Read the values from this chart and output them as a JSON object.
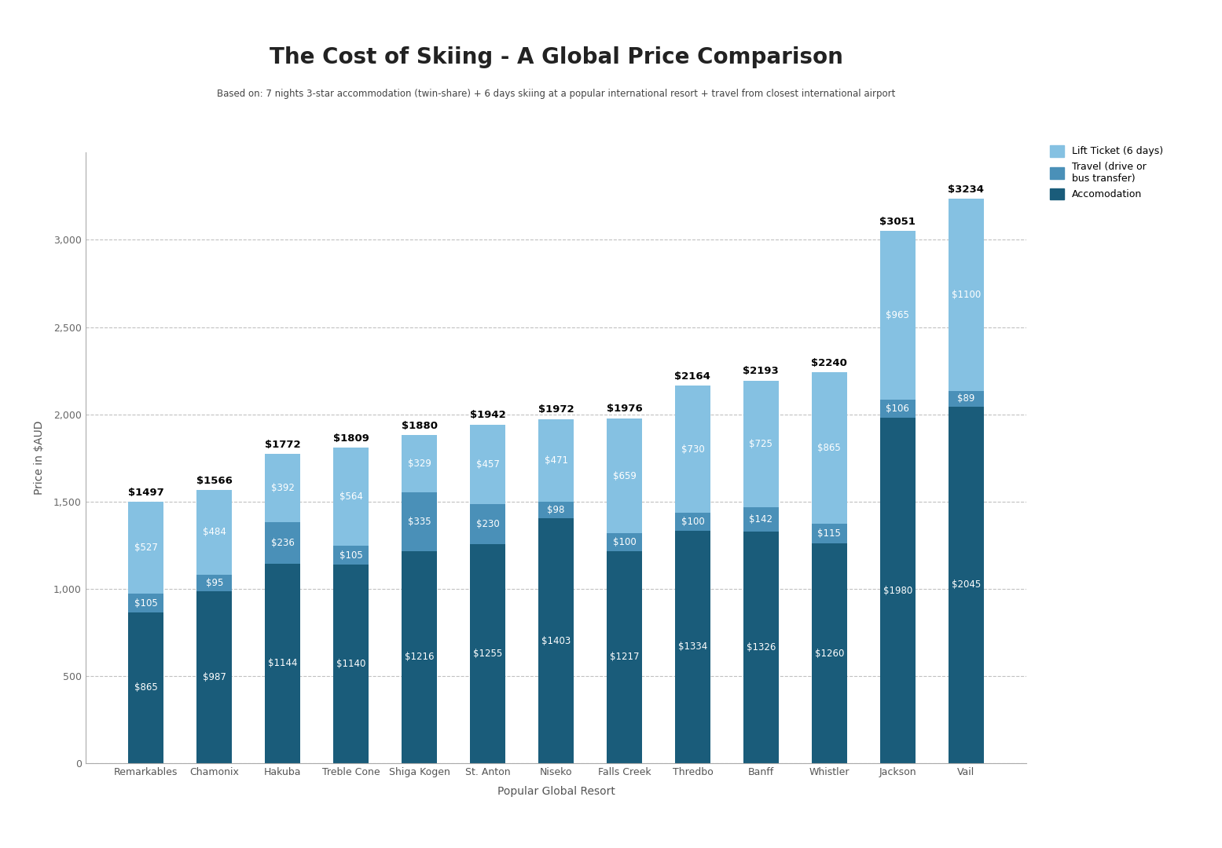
{
  "title": "The Cost of Skiing - A Global Price Comparison",
  "subtitle": "Based on: 7 nights 3-star accommodation (twin-share) + 6 days skiing at a popular international resort + travel from closest international airport",
  "xlabel": "Popular Global Resort",
  "ylabel": "Price in $AUD",
  "resorts": [
    "Remarkables",
    "Chamonix",
    "Hakuba",
    "Treble Cone",
    "Shiga Kogen",
    "St. Anton",
    "Niseko",
    "Falls Creek",
    "Thredbo",
    "Banff",
    "Whistler",
    "Jackson",
    "Vail"
  ],
  "accommodation": [
    865,
    987,
    1144,
    1140,
    1216,
    1255,
    1403,
    1217,
    1334,
    1326,
    1260,
    1980,
    2045
  ],
  "travel": [
    105,
    95,
    236,
    105,
    335,
    230,
    98,
    100,
    100,
    142,
    115,
    106,
    89
  ],
  "lift_ticket": [
    527,
    484,
    392,
    564,
    329,
    457,
    471,
    659,
    730,
    725,
    865,
    965,
    1100
  ],
  "totals": [
    1497,
    1566,
    1772,
    1809,
    1880,
    1942,
    1972,
    1976,
    2164,
    2193,
    2240,
    3051,
    3234
  ],
  "color_accommodation": "#1a5c7a",
  "color_travel": "#4a90b8",
  "color_lift": "#85c1e2",
  "background_color": "#ffffff",
  "ylim": [
    0,
    3500
  ],
  "yticks": [
    0,
    500,
    1000,
    1500,
    2000,
    2500,
    3000
  ],
  "legend_labels": [
    "Lift Ticket (6 days)",
    "Travel (drive or\nbus transfer)",
    "Accomodation"
  ]
}
